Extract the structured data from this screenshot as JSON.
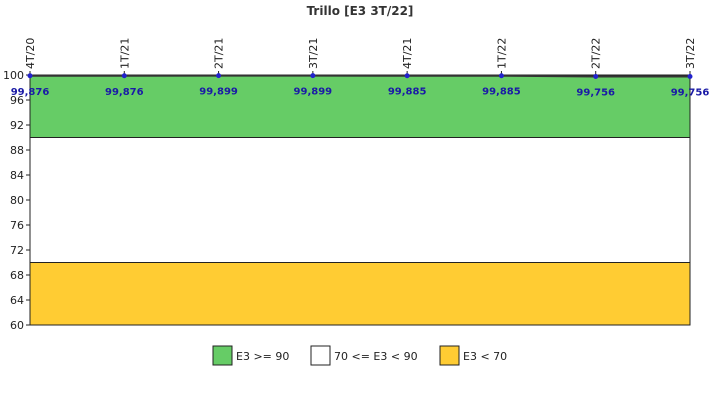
{
  "chart_data": {
    "type": "line",
    "title": "Trillo [E3 3T/22]",
    "categories": [
      "4T/20",
      "1T/21",
      "2T/21",
      "3T/21",
      "4T/21",
      "1T/22",
      "2T/22",
      "3T/22"
    ],
    "values": [
      99.876,
      99.876,
      99.899,
      99.899,
      99.885,
      99.885,
      99.756,
      99.756
    ],
    "data_labels": [
      "99,876",
      "99,876",
      "99,899",
      "99,899",
      "99,885",
      "99,885",
      "99,756",
      "99,756"
    ],
    "ylim": [
      60,
      100
    ],
    "yticks": [
      60,
      64,
      68,
      72,
      76,
      80,
      84,
      88,
      92,
      96,
      100
    ],
    "ytick_labels": [
      "60",
      "64",
      "68",
      "72",
      "76",
      "80",
      "84",
      "88",
      "92",
      "96",
      "100"
    ],
    "grid": false,
    "bands": [
      {
        "from": 90,
        "to": 100,
        "color": "#66cc66",
        "label": "E3 >= 90"
      },
      {
        "from": 70,
        "to": 90,
        "color": "#ffffff",
        "label": "70 <= E3 < 90"
      },
      {
        "from": 60,
        "to": 70,
        "color": "#ffcc33",
        "label": "E3 < 70"
      }
    ],
    "line_color": "#333333",
    "marker_color": "#2222cc",
    "legend_position": "bottom"
  }
}
